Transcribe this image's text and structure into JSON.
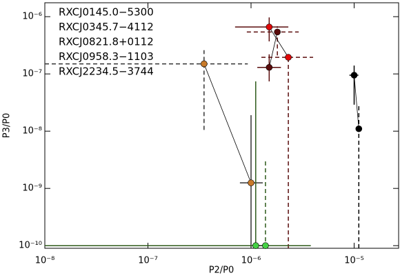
{
  "chart_data": {
    "type": "scatter",
    "log_x": true,
    "log_y": true,
    "xlabel": "P2/P0",
    "ylabel": "P3/P0",
    "xlim": [
      1e-08,
      2.7e-05
    ],
    "ylim": [
      9e-11,
      1.75e-06
    ],
    "xticks": [
      {
        "value": 1e-08,
        "label": "10⁻⁸"
      },
      {
        "value": 1e-07,
        "label": "10⁻⁷"
      },
      {
        "value": 1e-06,
        "label": "10⁻⁶"
      },
      {
        "value": 1e-05,
        "label": "10⁻⁵"
      }
    ],
    "yticks": [
      {
        "value": 1e-10,
        "label": "10⁻¹⁰"
      },
      {
        "value": 1e-09,
        "label": "10⁻⁹"
      },
      {
        "value": 1e-08,
        "label": "10⁻⁸"
      },
      {
        "value": 1e-07,
        "label": "10⁻⁷"
      },
      {
        "value": 1e-06,
        "label": "10⁻⁶"
      }
    ],
    "series": [
      {
        "name": "RXCJ0145.0−5300",
        "color": "#000000",
        "error_color": "#000000",
        "x": [
          1e-05,
          1.11e-05
        ],
        "y": [
          9.5e-08,
          1.1e-08
        ],
        "x_low": [
          9e-06,
          null
        ],
        "x_high": [
          1.1e-05,
          null
        ],
        "y_low": [
          2.9e-08,
          9e-11
        ],
        "y_high": [
          1.4e-07,
          3e-08
        ],
        "dashed": [
          false,
          true
        ]
      },
      {
        "name": "RXCJ0345.7−4112",
        "color": "#5a0c0c",
        "error_color": "#5a0c0c",
        "x": [
          1.8e-06,
          1.5e-06
        ],
        "y": [
          5.4e-07,
          1.3e-07
        ],
        "x_low": [
          9.1e-07,
          1.15e-06
        ],
        "x_high": [
          2.9e-06,
          1.95e-06
        ],
        "y_low": [
          2.1e-07,
          7.4e-08
        ],
        "y_high": [
          6.8e-07,
          2.2e-07
        ],
        "dashed": [
          true,
          false
        ]
      },
      {
        "name": "RXCJ0821.8+0112",
        "color": "#e00808",
        "error_color": "#5a0c0c",
        "x": [
          1.5e-06,
          2.3e-06
        ],
        "y": [
          6.6e-07,
          1.95e-07
        ],
        "x_low": [
          7e-07,
          1.26e-06
        ],
        "x_high": [
          2.3e-06,
          4e-06
        ],
        "y_low": [
          3.7e-07,
          9e-11
        ],
        "y_high": [
          9.7e-07,
          2.2e-07
        ],
        "dashed": [
          false,
          true
        ]
      },
      {
        "name": "RXCJ0958.3−1103",
        "color": "#c87a2a",
        "error_color": "#333333",
        "x": [
          3.5e-07,
          1e-06
        ],
        "y": [
          1.5e-07,
          1.25e-09
        ],
        "x_low": [
          1e-08,
          7.8e-07
        ],
        "x_high": [
          9.3e-07,
          1.3e-06
        ],
        "y_low": [
          1.05e-08,
          9e-11
        ],
        "y_high": [
          2.6e-07,
          1.9e-08
        ],
        "dashed": [
          true,
          false
        ]
      },
      {
        "name": "RXCJ2234.5−3744",
        "color": "#44d044",
        "error_color": "#2d5a1a",
        "x": [
          1.11e-06,
          1.38e-06
        ],
        "y": [
          1e-10,
          1e-10
        ],
        "x_low": [
          1e-08,
          null
        ],
        "x_high": [
          3.8e-06,
          null
        ],
        "y_low": [
          9e-11,
          9e-11
        ],
        "y_high": [
          7.4e-08,
          3.1e-09
        ],
        "dashed": [
          false,
          true
        ]
      }
    ]
  }
}
